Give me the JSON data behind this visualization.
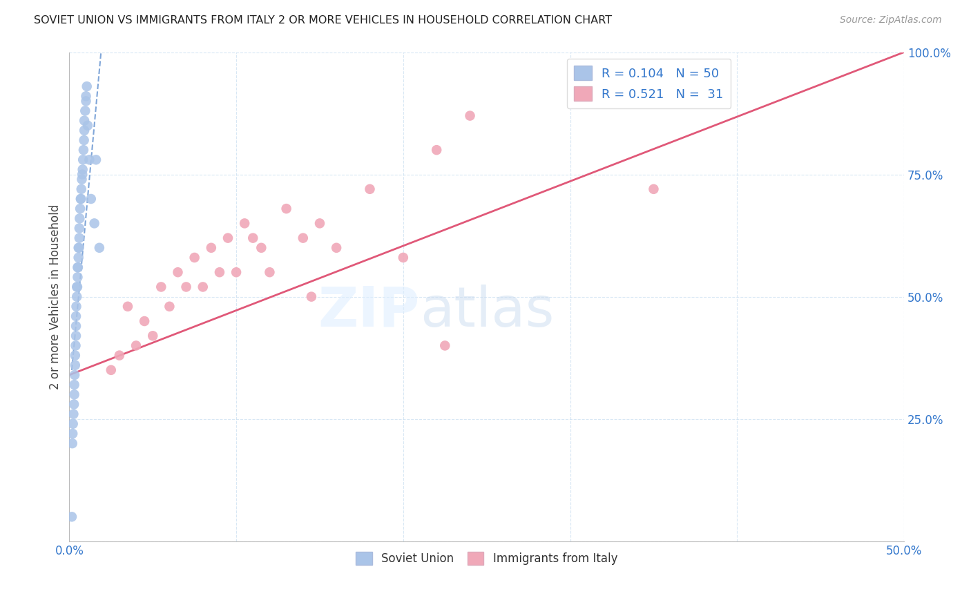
{
  "title": "SOVIET UNION VS IMMIGRANTS FROM ITALY 2 OR MORE VEHICLES IN HOUSEHOLD CORRELATION CHART",
  "source": "Source: ZipAtlas.com",
  "ylabel": "2 or more Vehicles in Household",
  "xlim": [
    0.0,
    50.0
  ],
  "ylim": [
    0.0,
    100.0
  ],
  "yticks": [
    0.0,
    25.0,
    50.0,
    75.0,
    100.0
  ],
  "ytick_labels": [
    "",
    "25.0%",
    "50.0%",
    "75.0%",
    "100.0%"
  ],
  "blue_color": "#aac4e8",
  "pink_color": "#f0a8b8",
  "blue_line_color": "#5588cc",
  "pink_line_color": "#e05878",
  "label_color": "#3377cc",
  "watermark_zip": "ZIP",
  "watermark_atlas": "atlas",
  "soviet_x": [
    0.15,
    0.18,
    0.2,
    0.22,
    0.25,
    0.28,
    0.3,
    0.3,
    0.32,
    0.35,
    0.35,
    0.38,
    0.4,
    0.4,
    0.4,
    0.42,
    0.45,
    0.45,
    0.48,
    0.5,
    0.5,
    0.52,
    0.55,
    0.55,
    0.58,
    0.6,
    0.6,
    0.62,
    0.65,
    0.68,
    0.7,
    0.72,
    0.75,
    0.78,
    0.8,
    0.82,
    0.85,
    0.88,
    0.9,
    0.9,
    0.95,
    1.0,
    1.0,
    1.05,
    1.1,
    1.2,
    1.3,
    1.5,
    1.6,
    1.8
  ],
  "soviet_y": [
    5.0,
    20.0,
    22.0,
    24.0,
    26.0,
    28.0,
    30.0,
    32.0,
    34.0,
    36.0,
    38.0,
    40.0,
    42.0,
    44.0,
    46.0,
    48.0,
    50.0,
    52.0,
    52.0,
    54.0,
    56.0,
    56.0,
    58.0,
    60.0,
    60.0,
    62.0,
    64.0,
    66.0,
    68.0,
    70.0,
    70.0,
    72.0,
    74.0,
    75.0,
    76.0,
    78.0,
    80.0,
    82.0,
    84.0,
    86.0,
    88.0,
    90.0,
    91.0,
    93.0,
    85.0,
    78.0,
    70.0,
    65.0,
    78.0,
    60.0
  ],
  "italy_x": [
    2.5,
    3.0,
    3.5,
    4.0,
    4.5,
    5.0,
    5.5,
    6.0,
    6.5,
    7.0,
    7.5,
    8.0,
    8.5,
    9.0,
    9.5,
    10.0,
    10.5,
    11.0,
    11.5,
    12.0,
    13.0,
    14.0,
    14.5,
    15.0,
    16.0,
    18.0,
    20.0,
    22.0,
    24.0,
    35.0,
    22.5
  ],
  "italy_y": [
    35.0,
    38.0,
    48.0,
    40.0,
    45.0,
    42.0,
    52.0,
    48.0,
    55.0,
    52.0,
    58.0,
    52.0,
    60.0,
    55.0,
    62.0,
    55.0,
    65.0,
    62.0,
    60.0,
    55.0,
    68.0,
    62.0,
    50.0,
    65.0,
    60.0,
    72.0,
    58.0,
    80.0,
    87.0,
    72.0,
    40.0
  ],
  "pink_line_x0": 0.0,
  "pink_line_y0": 34.0,
  "pink_line_x1": 50.0,
  "pink_line_y1": 100.0,
  "blue_line_x0": 0.15,
  "blue_line_y0": 35.0,
  "blue_line_x1": 1.9,
  "blue_line_y1": 100.0
}
